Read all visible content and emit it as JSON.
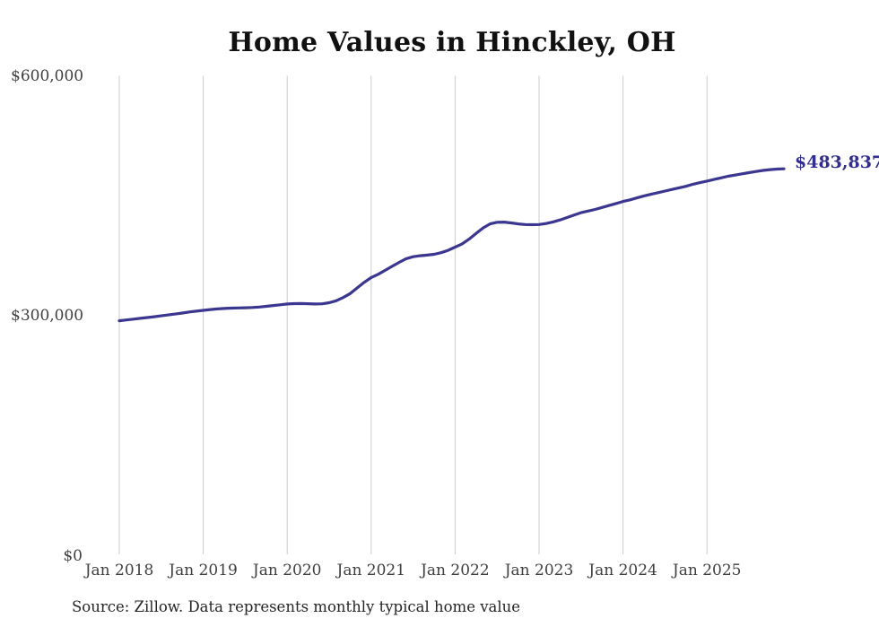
{
  "chart_data": {
    "type": "line",
    "title": "Home Values in Hinckley, OH",
    "source_note": "Source: Zillow. Data represents monthly typical home value",
    "end_label": "$483,837",
    "last_value": 483837,
    "interval": "monthly",
    "start": "Jan 2018",
    "x_tick_labels": [
      "Jan 2018",
      "Jan 2019",
      "Jan 2020",
      "Jan 2021",
      "Jan 2022",
      "Jan 2023",
      "Jan 2024",
      "Jan 2025"
    ],
    "y_ticks": [
      {
        "label": "$0",
        "value": 0
      },
      {
        "label": "$300,000",
        "value": 300000
      },
      {
        "label": "$600,000",
        "value": 600000
      }
    ],
    "ylim": [
      0,
      600000
    ],
    "grid": "vertical-only",
    "legend": "none",
    "colors": {
      "line": "#3b3690",
      "end_label": "#312e8e",
      "grid": "#cbcbcb",
      "tick_text": "#3f3f3f",
      "title_text": "#111111",
      "source_text": "#262626",
      "background": "#ffffff"
    },
    "values": [
      294000,
      295000,
      296000,
      297000,
      298000,
      299000,
      300200,
      301300,
      302400,
      303600,
      305000,
      306000,
      307000,
      308000,
      308800,
      309400,
      309800,
      310000,
      310200,
      310600,
      311200,
      312000,
      313000,
      314000,
      315000,
      315400,
      315500,
      315300,
      315000,
      315200,
      316500,
      319000,
      323000,
      328000,
      335000,
      342000,
      348000,
      352000,
      357000,
      362000,
      367000,
      371500,
      374000,
      375200,
      376000,
      377000,
      379000,
      382000,
      386000,
      390000,
      396000,
      403000,
      410000,
      415000,
      417000,
      417200,
      416200,
      415000,
      414200,
      414000,
      414200,
      415500,
      417500,
      420000,
      423000,
      426000,
      429000,
      431000,
      433000,
      435500,
      438000,
      440500,
      443000,
      445000,
      447500,
      450000,
      452000,
      454000,
      456000,
      458000,
      460000,
      462000,
      464500,
      466500,
      468500,
      470500,
      472500,
      474500,
      476000,
      477500,
      479000,
      480500,
      481800,
      482800,
      483500,
      483837
    ]
  }
}
